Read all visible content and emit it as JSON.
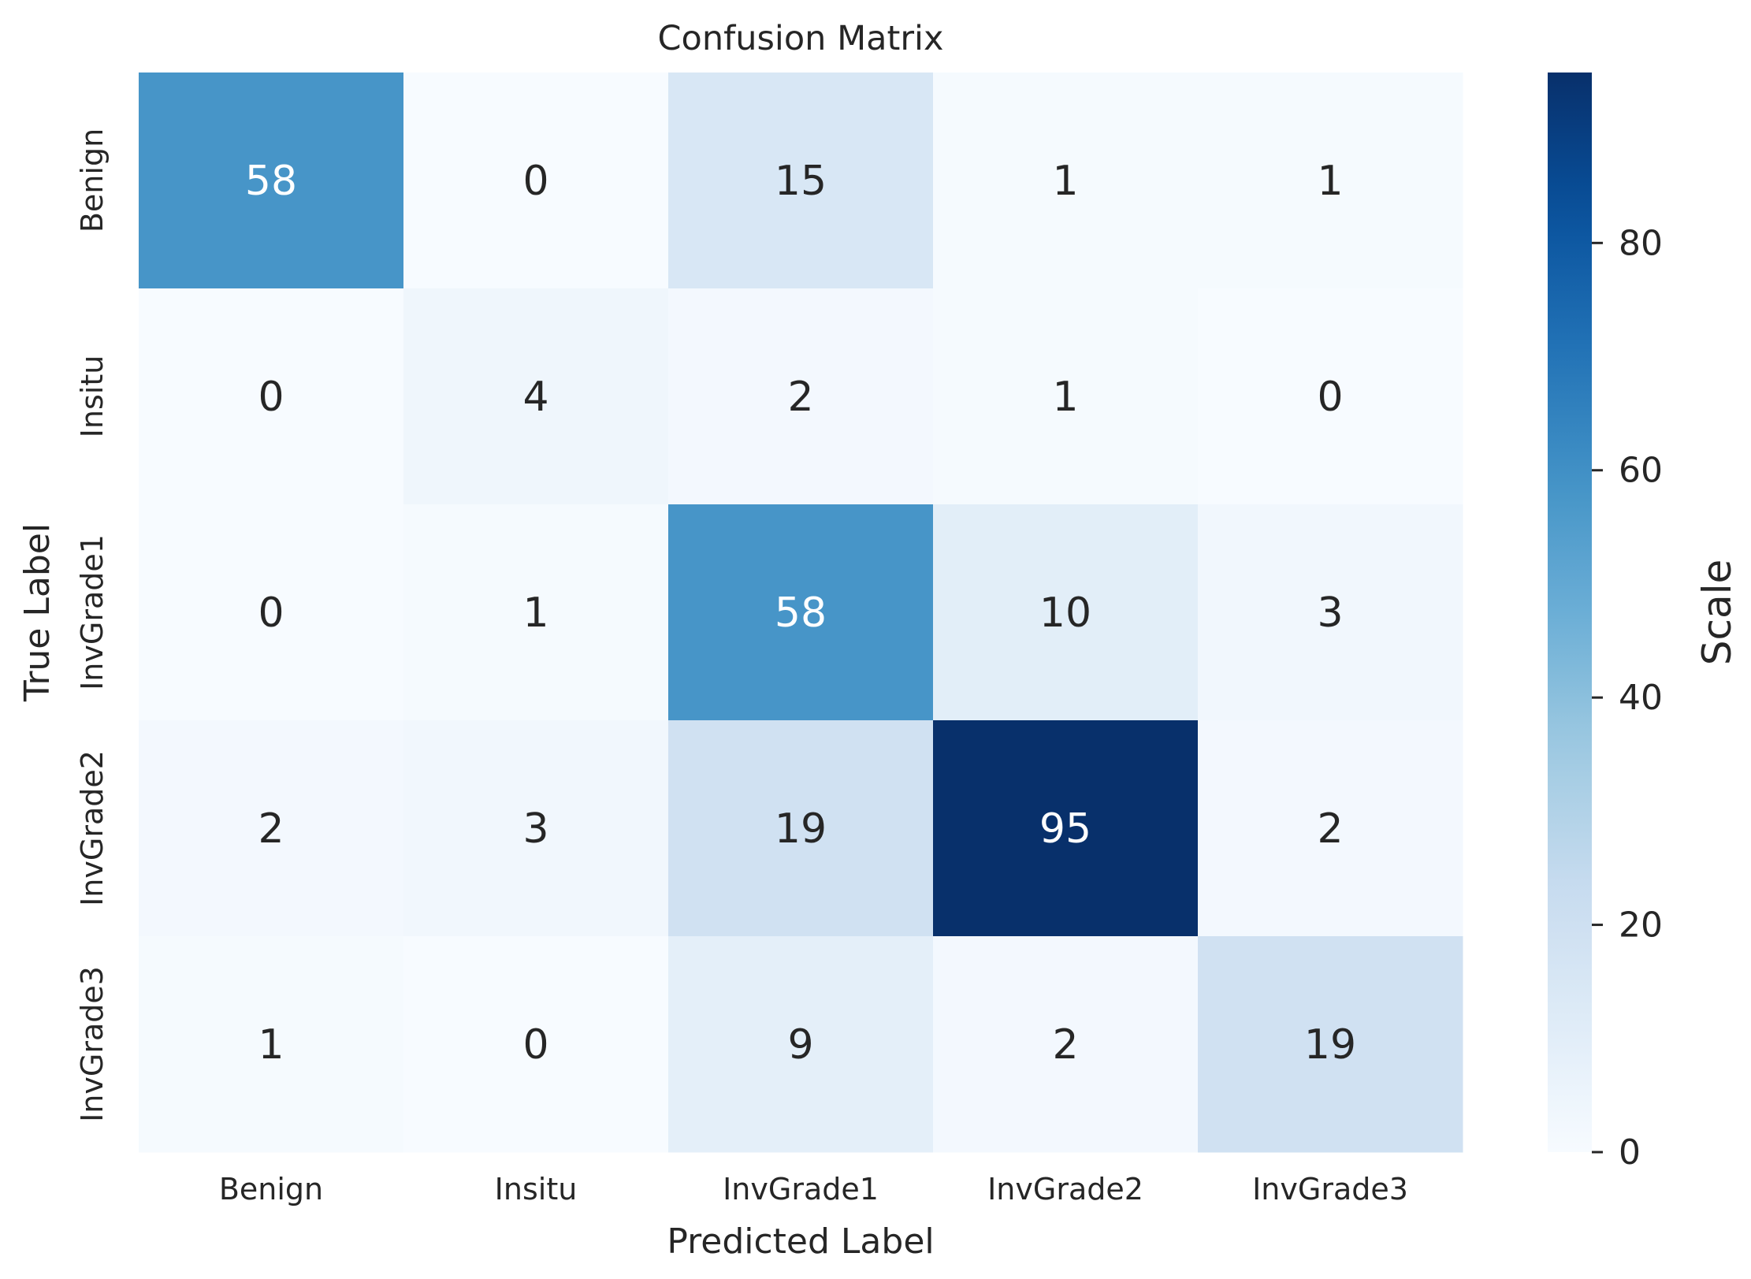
{
  "chart_data": {
    "type": "heatmap",
    "title": "Confusion Matrix",
    "xlabel": "Predicted Label",
    "ylabel": "True Label",
    "x_categories": [
      "Benign",
      "Insitu",
      "InvGrade1",
      "InvGrade2",
      "InvGrade3"
    ],
    "y_categories": [
      "Benign",
      "Insitu",
      "InvGrade1",
      "InvGrade2",
      "InvGrade3"
    ],
    "matrix": [
      [
        58,
        0,
        15,
        1,
        1
      ],
      [
        0,
        4,
        2,
        1,
        0
      ],
      [
        0,
        1,
        58,
        10,
        3
      ],
      [
        2,
        3,
        19,
        95,
        2
      ],
      [
        1,
        0,
        9,
        2,
        19
      ]
    ],
    "colorbar": {
      "label": "Scale",
      "range": [
        0,
        95
      ],
      "ticks": [
        "0",
        "20",
        "40",
        "60",
        "80"
      ],
      "colormap": "Blues"
    },
    "grid": false
  }
}
